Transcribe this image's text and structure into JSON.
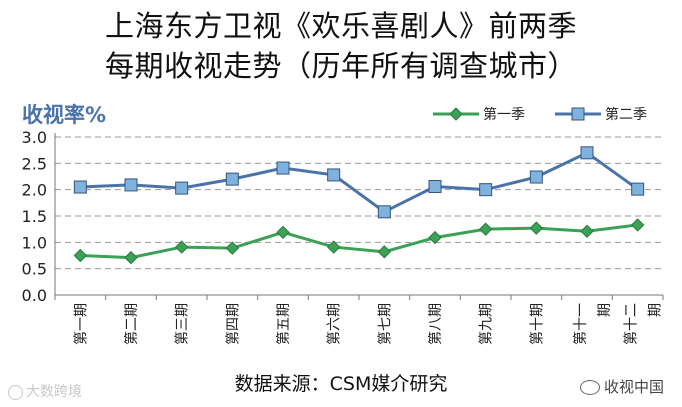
{
  "title_line1": "上海东方卫视《欢乐喜剧人》前两季",
  "title_line2": "每期收视走势（历年所有调查城市）",
  "source": "数据来源：CSM媒介研究",
  "watermark_left": "大数跨境",
  "watermark_right": "收视中国",
  "chart_data": {
    "type": "line",
    "ylabel": "收视率%",
    "ylim": [
      0,
      3.0
    ],
    "yticks": [
      "0.0",
      "0.5",
      "1.0",
      "1.5",
      "2.0",
      "2.5",
      "3.0"
    ],
    "grid": true,
    "legend_position": "top-right",
    "categories": [
      "第一期",
      "第二期",
      "第三期",
      "第四期",
      "第五期",
      "第六期",
      "第七期",
      "第八期",
      "第九期",
      "第十期",
      "第十一期",
      "第十二期"
    ],
    "series": [
      {
        "name": "第一季",
        "color": "#3aa155",
        "marker": "diamond",
        "values": [
          0.75,
          0.71,
          0.91,
          0.89,
          1.19,
          0.91,
          0.82,
          1.09,
          1.25,
          1.27,
          1.21,
          1.33
        ]
      },
      {
        "name": "第二季",
        "color": "#4a73aa",
        "marker": "square",
        "values": [
          2.05,
          2.09,
          2.03,
          2.2,
          2.41,
          2.28,
          1.58,
          2.06,
          2.0,
          2.24,
          2.7,
          2.01
        ]
      }
    ]
  }
}
